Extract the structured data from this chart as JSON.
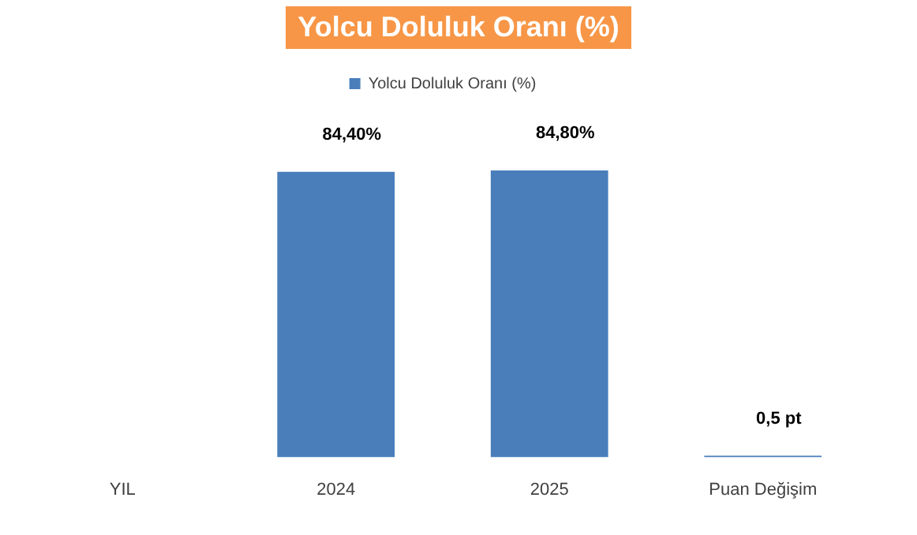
{
  "chart_data": {
    "type": "bar",
    "title": "Yolcu Doluluk Oranı (%)",
    "categories": [
      "YIL",
      "2024",
      "2025",
      "Puan Değişim"
    ],
    "series": [
      {
        "name": "Yolcu Doluluk Oranı (%)",
        "color": "#4a7ebb",
        "values": [
          null,
          84.4,
          84.8,
          0.5
        ],
        "value_labels": [
          null,
          "84,40%",
          "84,80%",
          "0,5 pt"
        ]
      }
    ],
    "legend": "top",
    "grid": false
  }
}
